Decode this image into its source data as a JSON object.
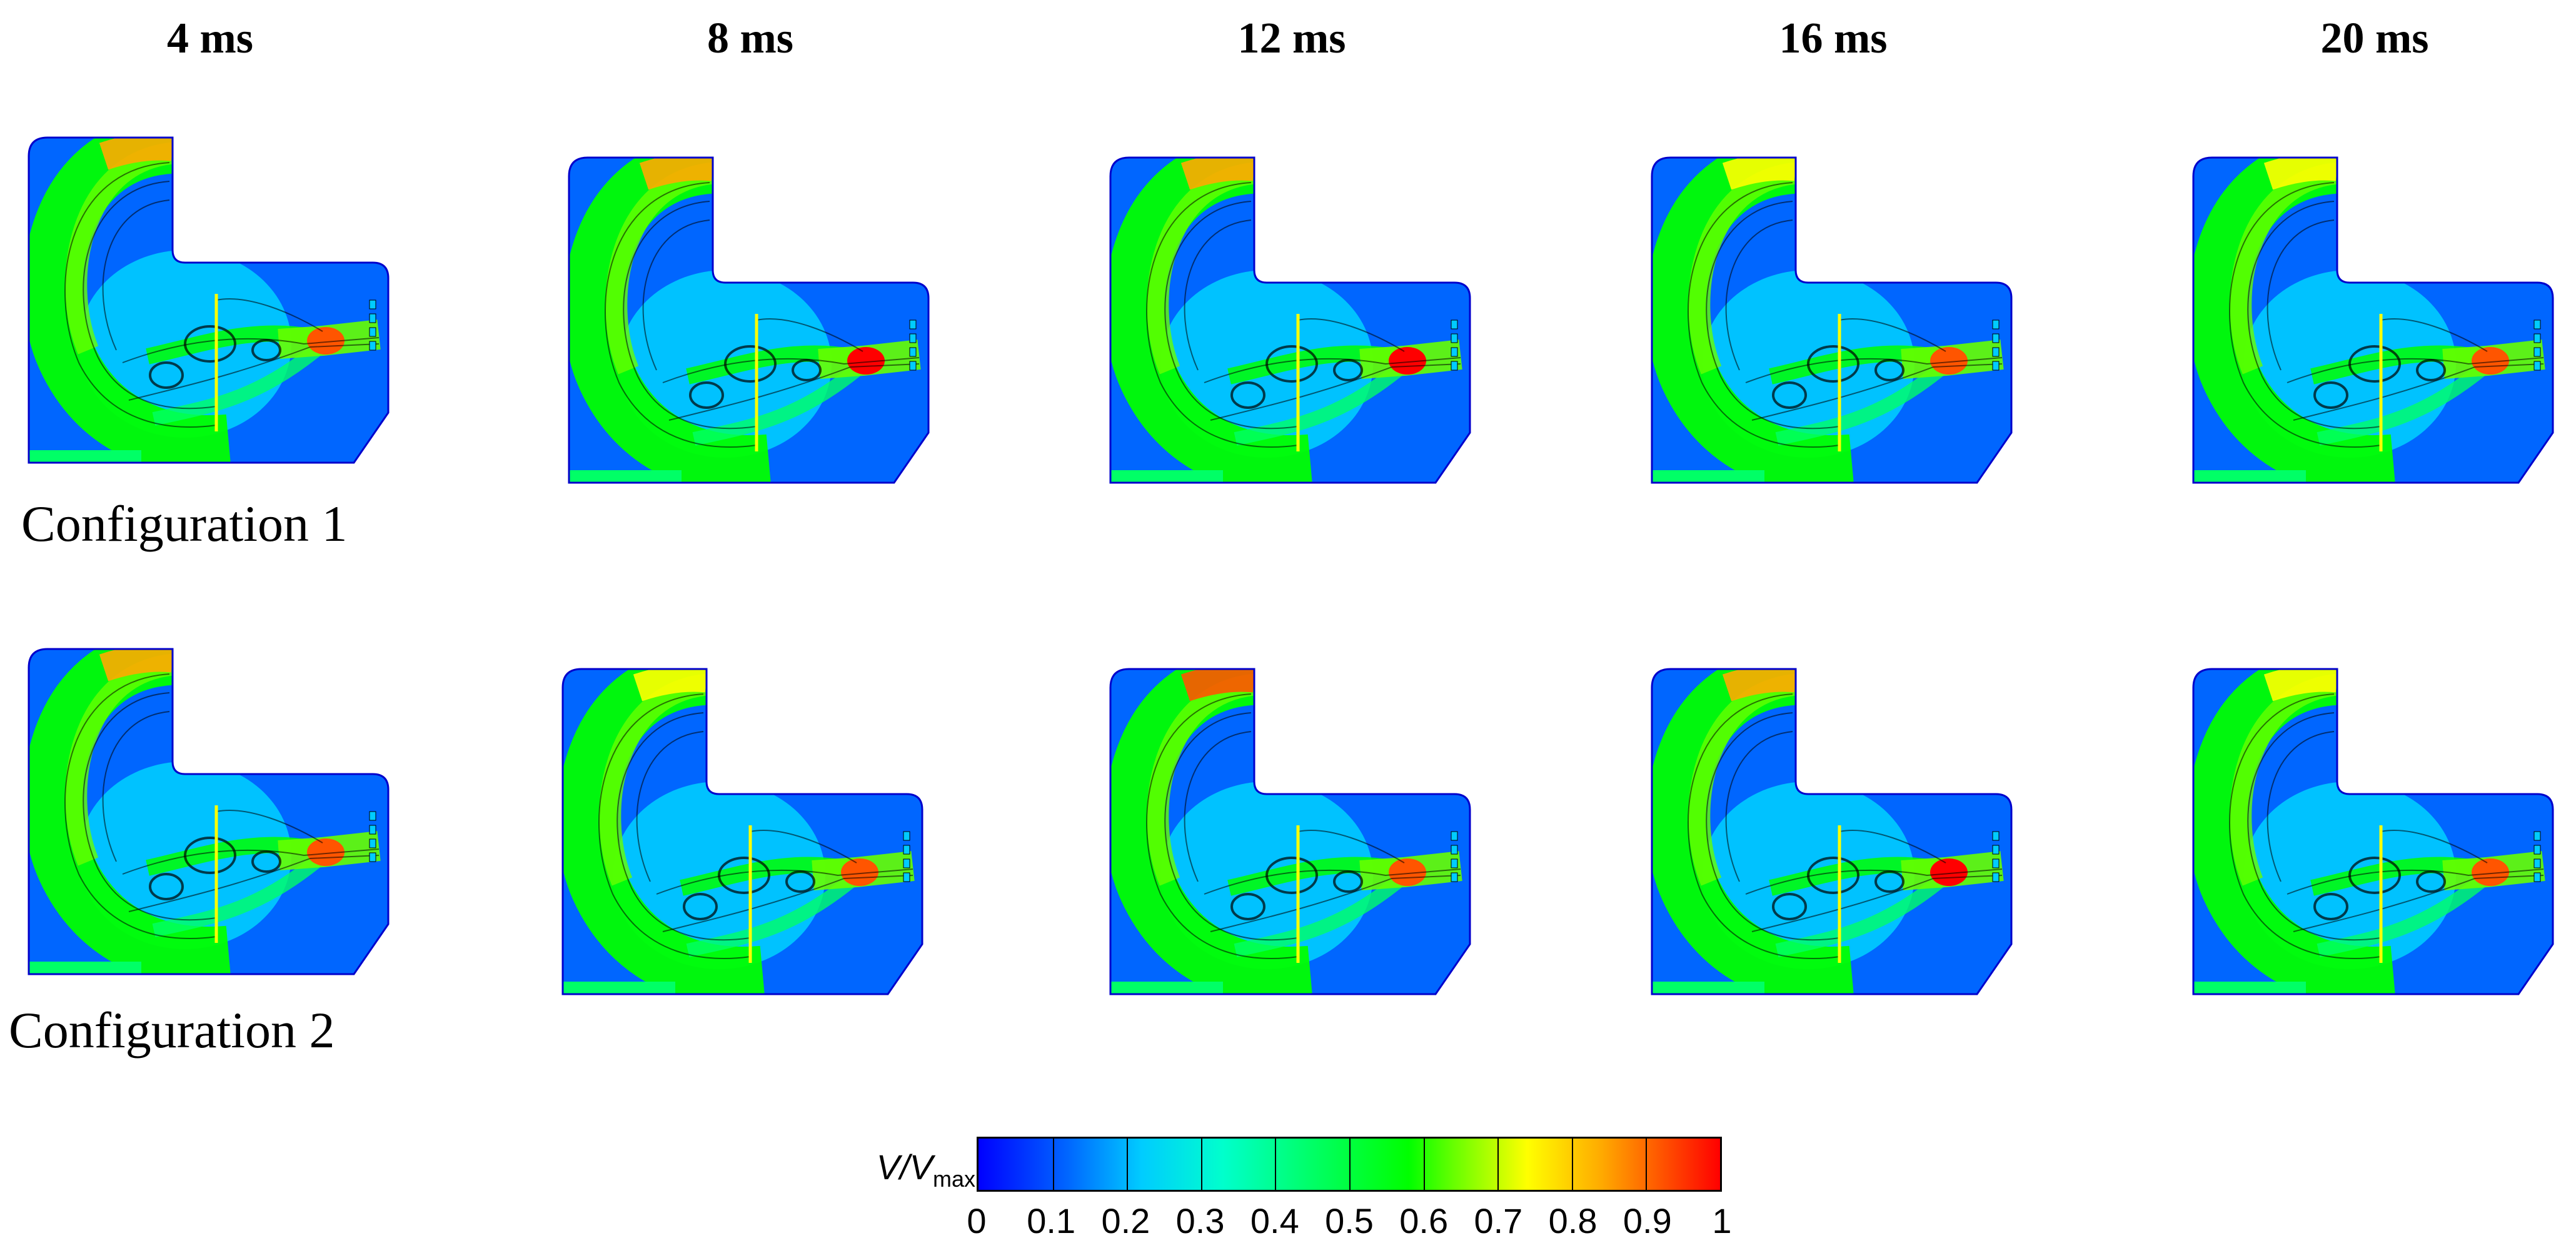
{
  "time_labels": [
    "4 ms",
    "8 ms",
    "12 ms",
    "16 ms",
    "20 ms"
  ],
  "rows": [
    {
      "label": "Configuration 1",
      "panels": [
        {
          "time": "4 ms",
          "hotspots": [
            {
              "pos": "jet",
              "level": 0.9
            },
            {
              "pos": "top-inlet",
              "level": 0.75
            }
          ]
        },
        {
          "time": "8 ms",
          "hotspots": [
            {
              "pos": "jet",
              "level": 0.95
            },
            {
              "pos": "top-inlet",
              "level": 0.75
            }
          ]
        },
        {
          "time": "12 ms",
          "hotspots": [
            {
              "pos": "jet",
              "level": 0.95
            },
            {
              "pos": "top-inlet",
              "level": 0.75
            }
          ]
        },
        {
          "time": "16 ms",
          "hotspots": [
            {
              "pos": "jet",
              "level": 0.9
            },
            {
              "pos": "top-inlet",
              "level": 0.72
            }
          ]
        },
        {
          "time": "20 ms",
          "hotspots": [
            {
              "pos": "jet",
              "level": 0.9
            },
            {
              "pos": "top-inlet",
              "level": 0.72
            }
          ]
        }
      ]
    },
    {
      "label": "Configuration 2",
      "panels": [
        {
          "time": "4 ms",
          "hotspots": [
            {
              "pos": "jet",
              "level": 0.85
            },
            {
              "pos": "top-inlet",
              "level": 0.75
            }
          ]
        },
        {
          "time": "8 ms",
          "hotspots": [
            {
              "pos": "jet",
              "level": 0.9
            },
            {
              "pos": "top-inlet",
              "level": 0.72
            }
          ]
        },
        {
          "time": "12 ms",
          "hotspots": [
            {
              "pos": "jet",
              "level": 0.9
            },
            {
              "pos": "top-inlet",
              "level": 0.85
            }
          ]
        },
        {
          "time": "16 ms",
          "hotspots": [
            {
              "pos": "jet",
              "level": 0.97
            },
            {
              "pos": "top-inlet",
              "level": 0.8
            }
          ]
        },
        {
          "time": "20 ms",
          "hotspots": [
            {
              "pos": "jet",
              "level": 0.9
            },
            {
              "pos": "top-inlet",
              "level": 0.72
            }
          ]
        }
      ]
    }
  ],
  "colorbar": {
    "label_main": "V/V",
    "label_sub": "max",
    "min": 0,
    "max": 1,
    "ticks": [
      "0",
      "0.1",
      "0.2",
      "0.3",
      "0.4",
      "0.5",
      "0.6",
      "0.7",
      "0.8",
      "0.9",
      "1"
    ],
    "colors": [
      "#0000ff",
      "#0066ff",
      "#00ccff",
      "#00ffcc",
      "#00ff66",
      "#00ff00",
      "#66ff00",
      "#ffff00",
      "#ffaa00",
      "#ff5500",
      "#ff0000"
    ]
  }
}
